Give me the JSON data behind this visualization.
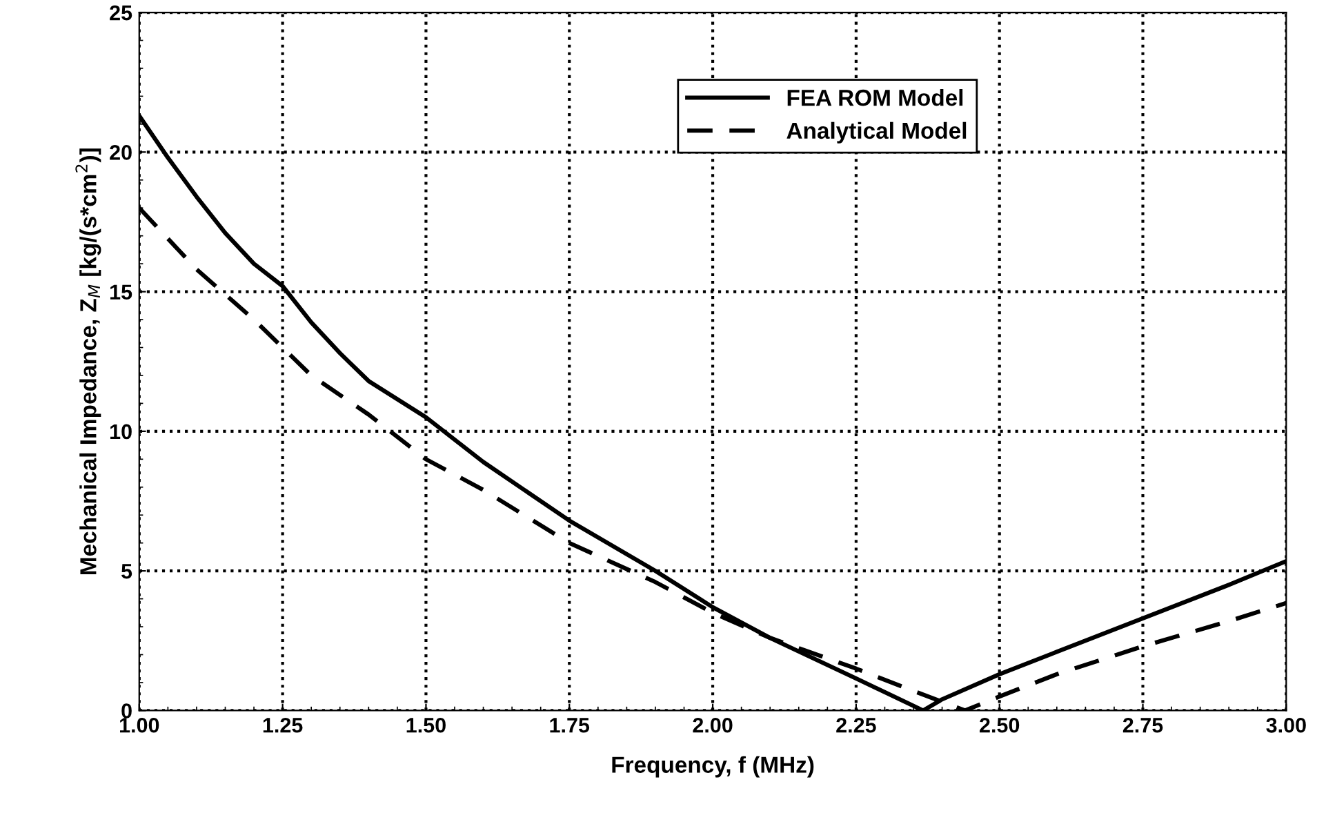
{
  "chart_data": {
    "type": "line",
    "xlabel": "Frequency, f (MHz)",
    "ylabel": "Mechanical Impedance, Z$_{M}$ [kg/(s*cm$^{2}$)]",
    "xlim": [
      1.0,
      3.0
    ],
    "xticks": [
      {
        "value": 1.0,
        "label": "1.00"
      },
      {
        "value": 1.25,
        "label": "1.25"
      },
      {
        "value": 1.5,
        "label": "1.50"
      },
      {
        "value": 1.75,
        "label": "1.75"
      },
      {
        "value": 2.0,
        "label": "2.00"
      },
      {
        "value": 2.25,
        "label": "2.25"
      },
      {
        "value": 2.5,
        "label": "2.50"
      },
      {
        "value": 2.75,
        "label": "2.75"
      },
      {
        "value": 3.0,
        "label": "3.00"
      }
    ],
    "ylim": [
      0,
      25
    ],
    "yticks": [
      0,
      5,
      10,
      15,
      20,
      25
    ],
    "grid": true,
    "legend": "top right",
    "series": [
      {
        "name": "FEA ROM Model",
        "color": "#000000",
        "line_style": "solid",
        "x": [
          1.0,
          1.05,
          1.1,
          1.15,
          1.2,
          1.25,
          1.3,
          1.35,
          1.4,
          1.5,
          1.6,
          1.75,
          1.9,
          2.0,
          2.1,
          2.25,
          2.367,
          2.4,
          2.5,
          2.6,
          2.75,
          2.9,
          3.0
        ],
        "values": [
          21.3,
          19.8,
          18.4,
          17.1,
          16.0,
          15.2,
          13.9,
          12.8,
          11.8,
          10.5,
          8.9,
          6.8,
          5.0,
          3.7,
          2.6,
          1.15,
          0.0,
          0.4,
          1.3,
          2.1,
          3.3,
          4.5,
          5.35
        ]
      },
      {
        "name": "Analytical Model",
        "color": "#000000",
        "line_style": "dashed",
        "x": [
          1.0,
          1.1,
          1.2,
          1.25,
          1.3,
          1.4,
          1.5,
          1.6,
          1.75,
          1.9,
          2.0,
          2.1,
          2.25,
          2.35,
          2.44,
          2.5,
          2.6,
          2.75,
          2.9,
          3.0
        ],
        "values": [
          18.0,
          15.8,
          14.0,
          13.0,
          12.0,
          10.6,
          9.0,
          7.9,
          6.0,
          4.6,
          3.5,
          2.6,
          1.5,
          0.7,
          0.0,
          0.5,
          1.3,
          2.3,
          3.2,
          3.85
        ]
      }
    ]
  }
}
